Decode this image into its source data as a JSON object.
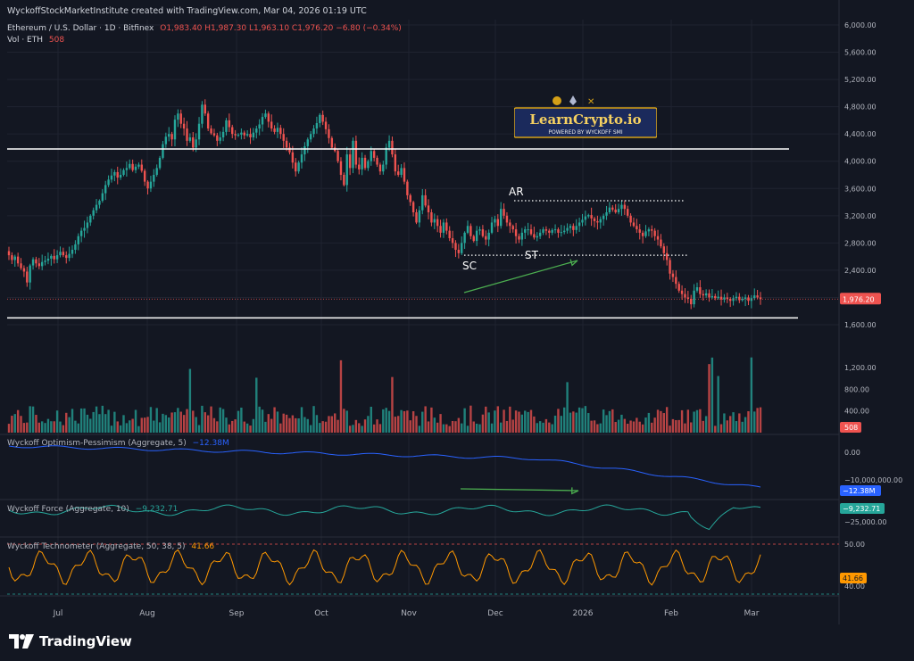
{
  "header": {
    "credit": "WyckoffStockMarketInstitute created with TradingView.com, Mar 04, 2026 01:19 UTC",
    "symbol": "Ethereum / U.S. Dollar · 1D · Bitfinex",
    "ohlc": "O1,983.40  H1,987.30  L1,963.10  C1,976.20  −6.80 (−0.34%)",
    "vol_label": "Vol · ETH",
    "vol_value": "508"
  },
  "indicators": {
    "optimism": {
      "label": "Wyckoff Optimism-Pessimism (Aggregate, 5)",
      "value": "−12.38M",
      "color": "#2962ff"
    },
    "force": {
      "label": "Wyckoff Force (Aggregate, 10)",
      "value": "−9,232.71",
      "color": "#26a69a"
    },
    "techno": {
      "label": "Wyckoff Technometer (Aggregate, 50, 38, 5)",
      "value": "41.66",
      "color": "#ff9800"
    }
  },
  "annotations": {
    "ar": "AR",
    "sc": "SC",
    "st": "ST"
  },
  "logo": {
    "name": "LearnCrypto.io",
    "tagline": "POWERED BY WYCKOFF SMI"
  },
  "footer": {
    "brand": "TradingView"
  },
  "colors": {
    "up": "#26a69a",
    "down": "#ef5350",
    "bg": "#131722",
    "grid": "#1f2330"
  },
  "chart_data": {
    "type": "candlestick",
    "x_ticks": [
      "Jul",
      "Aug",
      "Sep",
      "Oct",
      "Nov",
      "Dec",
      "2026",
      "Feb",
      "Mar"
    ],
    "price_axis": [
      "6,000.00",
      "5,600.00",
      "5,200.00",
      "4,800.00",
      "4,400.00",
      "4,000.00",
      "3,600.00",
      "3,200.00",
      "2,800.00",
      "2,400.00",
      "2,000.00",
      "1,600.00"
    ],
    "volume_axis": [
      "1,200.00",
      "800.00",
      "400.00"
    ],
    "optimism_axis": [
      "0.00",
      "−10,000,000.00"
    ],
    "force_axis": [
      "−25,000.00"
    ],
    "techno_axis": [
      "50.00",
      "40.00"
    ],
    "last_price": "1,976.20",
    "last_volume": "508",
    "ylim": [
      1500,
      6100
    ],
    "support_levels": [
      4180,
      1700
    ],
    "range_levels": {
      "ar": 3420,
      "st": 2620
    },
    "closes": [
      2620,
      2550,
      2600,
      2500,
      2430,
      2380,
      2220,
      2470,
      2560,
      2500,
      2460,
      2520,
      2540,
      2570,
      2610,
      2560,
      2620,
      2670,
      2620,
      2580,
      2640,
      2700,
      2780,
      2900,
      2980,
      3020,
      3100,
      3200,
      3280,
      3360,
      3420,
      3530,
      3650,
      3730,
      3790,
      3840,
      3760,
      3800,
      3870,
      3900,
      3960,
      3870,
      3920,
      3950,
      3860,
      3700,
      3600,
      3700,
      3800,
      3900,
      4050,
      4250,
      4360,
      4400,
      4320,
      4610,
      4700,
      4550,
      4480,
      4300,
      4350,
      4200,
      4320,
      4550,
      4830,
      4700,
      4480,
      4410,
      4380,
      4300,
      4350,
      4430,
      4600,
      4500,
      4400,
      4380,
      4390,
      4420,
      4380,
      4400,
      4350,
      4420,
      4480,
      4540,
      4650,
      4700,
      4580,
      4480,
      4430,
      4490,
      4400,
      4300,
      4200,
      4130,
      3980,
      3850,
      3980,
      4100,
      4220,
      4320,
      4400,
      4480,
      4560,
      4680,
      4580,
      4470,
      4340,
      4200,
      4150,
      4000,
      3800,
      3650,
      4100,
      3900,
      4300,
      3950,
      3880,
      4050,
      3900,
      4000,
      4150,
      4050,
      3950,
      3850,
      3950,
      4200,
      4300,
      4100,
      3850,
      3800,
      3900,
      3700,
      3500,
      3400,
      3250,
      3100,
      3280,
      3500,
      3350,
      3250,
      3100,
      3150,
      3050,
      2950,
      3100,
      2980,
      2870,
      2800,
      2700,
      2650,
      2800,
      2950,
      3050,
      2900,
      2830,
      2980,
      3000,
      2900,
      2850,
      2950,
      3100,
      3150,
      3050,
      3300,
      3200,
      3100,
      3050,
      3000,
      2900,
      2850,
      2950,
      3000,
      3000,
      2930,
      2880,
      2900,
      2950,
      3000,
      2980,
      2950,
      2990,
      3000,
      2950,
      2960,
      2980,
      3020,
      3050,
      2990,
      3050,
      3100,
      3140,
      3190,
      3210,
      3160,
      3120,
      3100,
      3150,
      3200,
      3250,
      3320,
      3290,
      3250,
      3300,
      3360,
      3300,
      3200,
      3100,
      3050,
      3000,
      2950,
      2900,
      2970,
      3000,
      2980,
      2900,
      2850,
      2750,
      2650,
      2550,
      2350,
      2300,
      2200,
      2100,
      2050,
      2000,
      1980,
      1900,
      2100,
      2150,
      2050,
      2030,
      2060,
      2000,
      2020,
      1990,
      2010,
      1970,
      2000,
      1980,
      1950,
      1990,
      2010,
      1960,
      1980,
      2000,
      1950,
      1990,
      2030,
      2000,
      1976
    ]
  }
}
